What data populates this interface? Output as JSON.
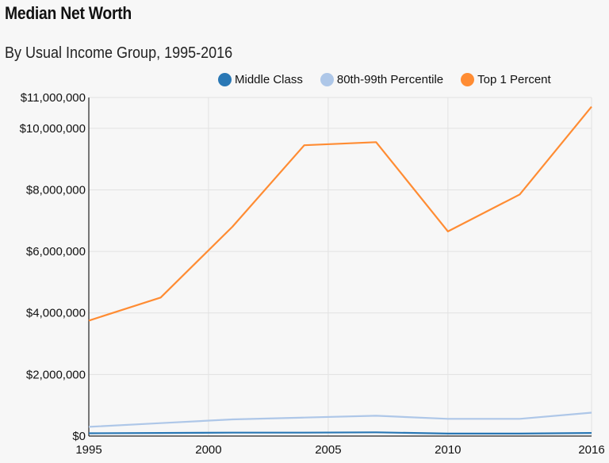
{
  "title": "Median Net Worth",
  "subtitle": "By Usual Income Group, 1995-2016",
  "chart_data": {
    "type": "line",
    "title": "Median Net Worth",
    "subtitle": "By Usual Income Group, 1995-2016",
    "xlabel": "",
    "ylabel": "",
    "xlim": [
      1995,
      2016
    ],
    "ylim": [
      0,
      11000000
    ],
    "grid": true,
    "legend_placement": "top-right",
    "x_ticks": [
      "1995",
      "2000",
      "2005",
      "2010",
      "2016"
    ],
    "x_tick_values": [
      1995,
      2000,
      2005,
      2010,
      2016
    ],
    "y_ticks": [
      "$0",
      "$2,000,000",
      "$4,000,000",
      "$6,000,000",
      "$8,000,000",
      "$10,000,000",
      "$11,000,000"
    ],
    "y_tick_values": [
      0,
      2000000,
      4000000,
      6000000,
      8000000,
      10000000,
      11000000
    ],
    "x": [
      1995,
      1998,
      2001,
      2004,
      2007,
      2010,
      2013,
      2016
    ],
    "series": [
      {
        "name": "Middle Class",
        "color": "#2a78b5",
        "values": [
          90000,
          100000,
          110000,
          110000,
          120000,
          80000,
          80000,
          100000
        ]
      },
      {
        "name": "80th-99th Percentile",
        "color": "#aec7e8",
        "values": [
          300000,
          420000,
          540000,
          600000,
          660000,
          560000,
          560000,
          760000
        ]
      },
      {
        "name": "Top 1 Percent",
        "color": "#ff8c33",
        "values": [
          3750000,
          4500000,
          6800000,
          9450000,
          9550000,
          6650000,
          7850000,
          10700000
        ]
      }
    ]
  }
}
